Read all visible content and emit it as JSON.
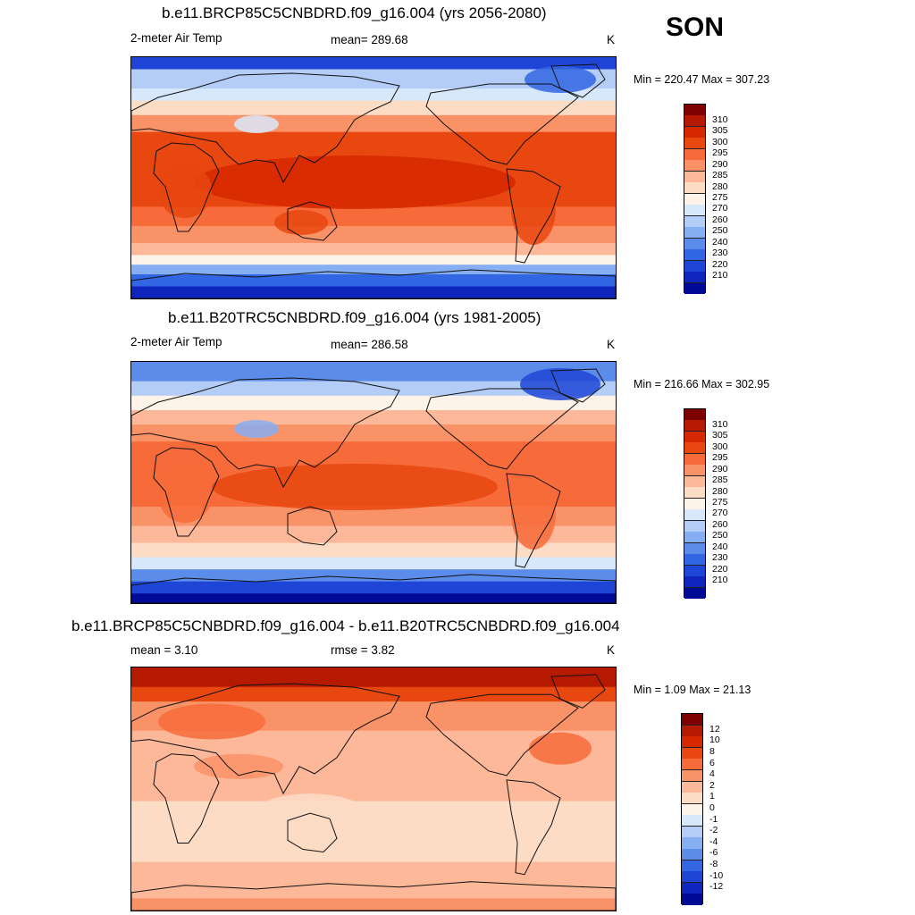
{
  "season": "SON",
  "panels": [
    {
      "id": "future",
      "title": "b.e11.BRCP85C5CNBDRD.f09_g16.004 (yrs 2056-2080)",
      "left_label": "2-meter Air Temp",
      "center_label": "mean= 289.68",
      "units": "K",
      "minmax": "Min = 220.47 Max = 307.23",
      "map_kind": "abs_warm",
      "colorbar_labels": [
        "310",
        "305",
        "300",
        "295",
        "290",
        "285",
        "280",
        "275",
        "270",
        "260",
        "250",
        "240",
        "230",
        "220",
        "210"
      ],
      "colors": [
        "#7f0000",
        "#b51a00",
        "#d62800",
        "#e8470f",
        "#f76b3a",
        "#fa9268",
        "#fcb899",
        "#fddcc6",
        "#fdf3e8",
        "#d8e8fb",
        "#b3cdf7",
        "#86aef2",
        "#5c8cea",
        "#3366e3",
        "#1f45d6",
        "#0f25bd",
        "#000a94"
      ]
    },
    {
      "id": "historical",
      "title": "b.e11.B20TRC5CNBDRD.f09_g16.004 (yrs 1981-2005)",
      "left_label": "2-meter Air Temp",
      "center_label": "mean= 286.58",
      "units": "K",
      "minmax": "Min = 216.66 Max = 302.95",
      "map_kind": "abs_cool",
      "colorbar_labels": [
        "310",
        "305",
        "300",
        "295",
        "290",
        "285",
        "280",
        "275",
        "270",
        "260",
        "250",
        "240",
        "230",
        "220",
        "210"
      ],
      "colors": [
        "#7f0000",
        "#b51a00",
        "#d62800",
        "#e8470f",
        "#f76b3a",
        "#fa9268",
        "#fcb899",
        "#fddcc6",
        "#fdf3e8",
        "#d8e8fb",
        "#b3cdf7",
        "#86aef2",
        "#5c8cea",
        "#3366e3",
        "#1f45d6",
        "#0f25bd",
        "#000a94"
      ]
    },
    {
      "id": "difference",
      "title": "b.e11.BRCP85C5CNBDRD.f09_g16.004 - b.e11.B20TRC5CNBDRD.f09_g16.004",
      "left_label": "mean =   3.10",
      "center_label": "rmse =   3.82",
      "units": "K",
      "minmax": "Min =   1.09 Max =  21.13",
      "map_kind": "diff",
      "colorbar_labels": [
        "12",
        "10",
        "8",
        "6",
        "4",
        "2",
        "1",
        "0",
        "-1",
        "-2",
        "-4",
        "-6",
        "-8",
        "-10",
        "-12"
      ],
      "colors": [
        "#7f0000",
        "#b51a00",
        "#d62800",
        "#e8470f",
        "#f76b3a",
        "#fa9268",
        "#fcb899",
        "#fddcc6",
        "#fdf3e8",
        "#d8e8fb",
        "#b3cdf7",
        "#86aef2",
        "#5c8cea",
        "#3366e3",
        "#1f45d6",
        "#0f25bd",
        "#000a94"
      ]
    }
  ]
}
